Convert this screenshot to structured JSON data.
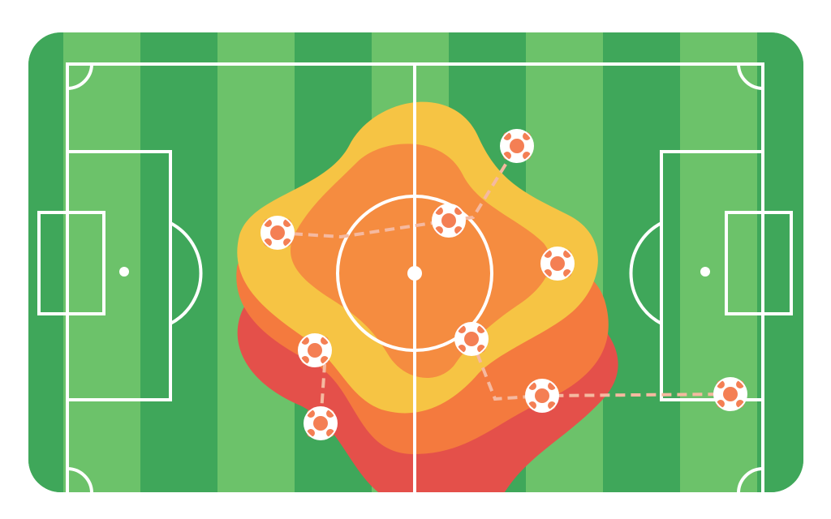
{
  "colors": {
    "grass_dark": "#3fa75a",
    "grass_light": "#6cc26a",
    "lines": "#ffffff",
    "heat_red": "#e4504a",
    "heat_orange": "#f47a3e",
    "heat_yellow": "#f6c444",
    "heat_core": "#f58c40",
    "player_fill": "#f47f54",
    "pass_line": "#f5b9a0"
  },
  "players": [
    {
      "id": 1,
      "icon": "player-marker-icon"
    },
    {
      "id": 2,
      "icon": "player-marker-icon"
    },
    {
      "id": 3,
      "icon": "player-marker-icon"
    },
    {
      "id": 4,
      "icon": "player-marker-icon"
    },
    {
      "id": 5,
      "icon": "player-marker-icon"
    },
    {
      "id": 6,
      "icon": "player-marker-icon"
    },
    {
      "id": 7,
      "icon": "player-marker-icon"
    },
    {
      "id": 8,
      "icon": "player-marker-icon"
    },
    {
      "id": 9,
      "icon": "player-marker-icon"
    }
  ]
}
